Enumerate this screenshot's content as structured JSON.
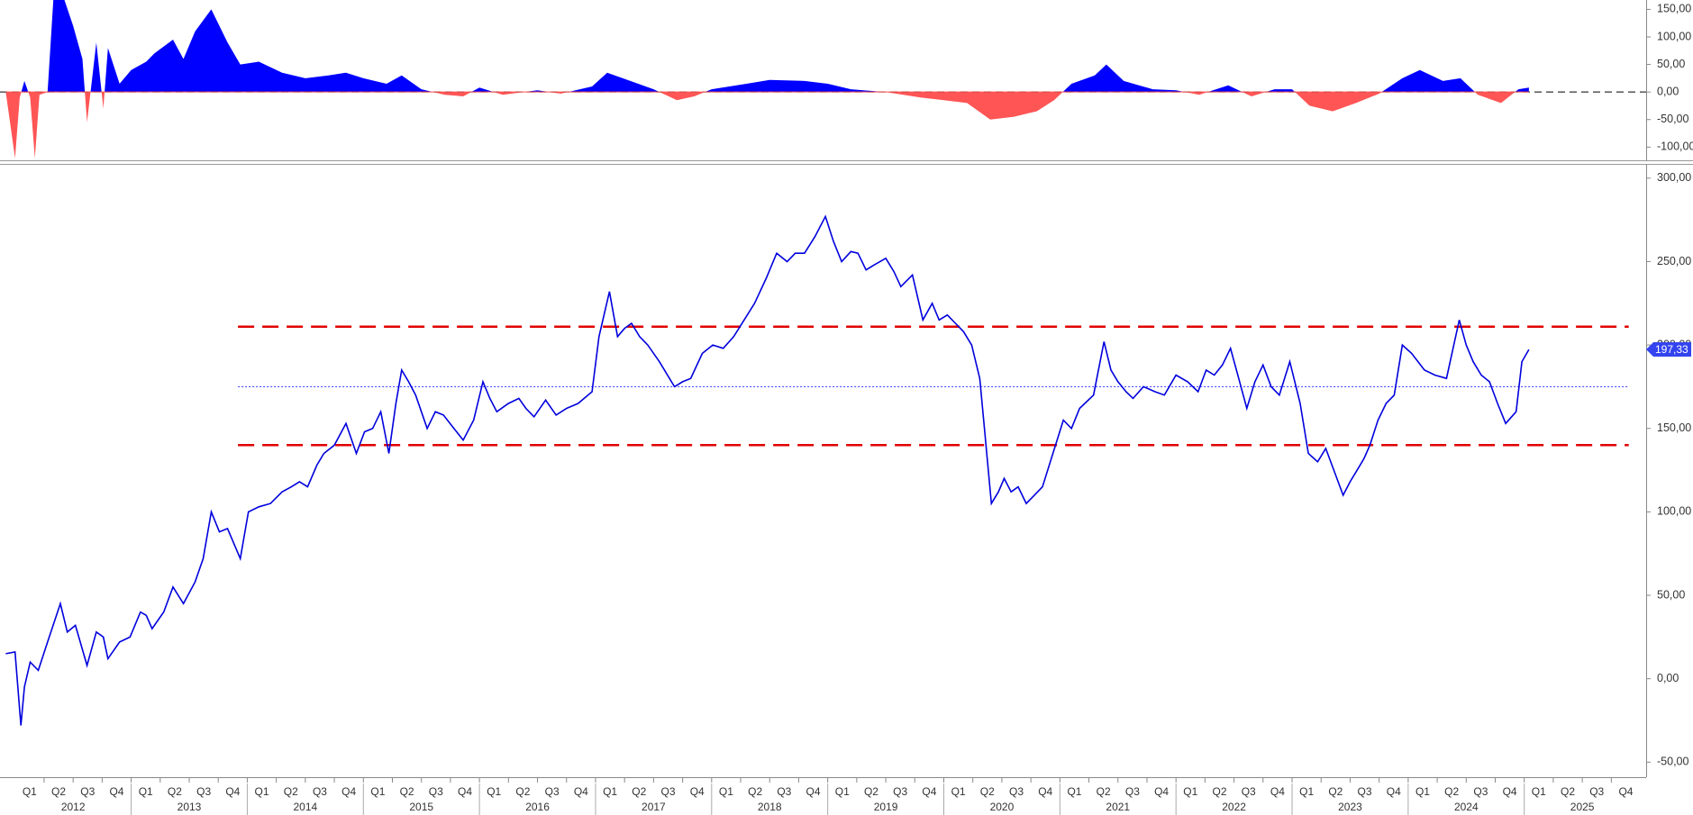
{
  "chart_data": [
    {
      "type": "area",
      "x": [
        2011.92,
        2012.0,
        2012.04,
        2012.08,
        2012.13,
        2012.17,
        2012.21,
        2012.28,
        2012.33,
        2012.42,
        2012.5,
        2012.58,
        2012.62,
        2012.7,
        2012.76,
        2012.8,
        2012.9,
        2013.0,
        2013.13,
        2013.2,
        2013.36,
        2013.45,
        2013.55,
        2013.69,
        2013.83,
        2013.94,
        2014.1,
        2014.3,
        2014.5,
        2014.7,
        2014.85,
        2015.0,
        2015.2,
        2015.33,
        2015.5,
        2015.7,
        2015.86,
        2016.0,
        2016.2,
        2016.5,
        2016.7,
        2016.97,
        2017.1,
        2017.3,
        2017.5,
        2017.7,
        2017.85,
        2018.0,
        2018.3,
        2018.5,
        2018.8,
        2019.0,
        2019.2,
        2019.5,
        2019.8,
        2020.0,
        2020.2,
        2020.4,
        2020.6,
        2020.8,
        2020.95,
        2021.1,
        2021.3,
        2021.4,
        2021.55,
        2021.8,
        2022.0,
        2022.2,
        2022.45,
        2022.65,
        2022.85,
        2023.0,
        2023.15,
        2023.35,
        2023.55,
        2023.75,
        2023.95,
        2024.1,
        2024.3,
        2024.45,
        2024.6,
        2024.8,
        2024.95,
        2025.04
      ],
      "values": [
        0,
        -120,
        -10,
        20,
        -10,
        -120,
        -5,
        0,
        170,
        170,
        120,
        60,
        -55,
        90,
        -30,
        80,
        15,
        40,
        55,
        70,
        95,
        60,
        110,
        150,
        90,
        50,
        55,
        35,
        25,
        30,
        35,
        25,
        15,
        30,
        5,
        -5,
        -8,
        8,
        -5,
        3,
        -3,
        10,
        35,
        20,
        5,
        -15,
        -8,
        5,
        15,
        22,
        20,
        15,
        5,
        0,
        -10,
        -15,
        -20,
        -50,
        -45,
        -35,
        -15,
        15,
        30,
        50,
        20,
        5,
        3,
        -5,
        12,
        -8,
        5,
        5,
        -25,
        -35,
        -20,
        -3,
        25,
        40,
        20,
        25,
        -5,
        -20,
        5,
        8
      ],
      "pos_color": "#0000ff",
      "neg_color": "#ff5555",
      "xlim": [
        2011.87,
        2026.05
      ],
      "ylim": [
        -124,
        167
      ],
      "yticks": [
        {
          "value": 150,
          "label": "150,00"
        },
        {
          "value": 100,
          "label": "100,00"
        },
        {
          "value": 50,
          "label": "50,00"
        },
        {
          "value": 0,
          "label": "0,00"
        },
        {
          "value": -50,
          "label": "-50,00"
        },
        {
          "value": -100,
          "label": "-100,00"
        }
      ]
    },
    {
      "type": "line",
      "x": [
        2011.92,
        2012.0,
        2012.05,
        2012.08,
        2012.13,
        2012.2,
        2012.28,
        2012.39,
        2012.45,
        2012.52,
        2012.62,
        2012.7,
        2012.76,
        2012.8,
        2012.9,
        2012.99,
        2013.08,
        2013.13,
        2013.18,
        2013.28,
        2013.36,
        2013.45,
        2013.55,
        2013.62,
        2013.69,
        2013.76,
        2013.83,
        2013.94,
        2014.01,
        2014.1,
        2014.2,
        2014.3,
        2014.38,
        2014.45,
        2014.52,
        2014.6,
        2014.66,
        2014.75,
        2014.85,
        2014.94,
        2015.01,
        2015.08,
        2015.15,
        2015.22,
        2015.28,
        2015.33,
        2015.39,
        2015.45,
        2015.55,
        2015.62,
        2015.69,
        2015.78,
        2015.86,
        2015.95,
        2016.03,
        2016.09,
        2016.15,
        2016.25,
        2016.34,
        2016.4,
        2016.47,
        2016.57,
        2016.66,
        2016.75,
        2016.85,
        2016.97,
        2017.03,
        2017.12,
        2017.19,
        2017.25,
        2017.31,
        2017.38,
        2017.45,
        2017.55,
        2017.68,
        2017.75,
        2017.82,
        2017.92,
        2018.01,
        2018.1,
        2018.19,
        2018.28,
        2018.37,
        2018.47,
        2018.56,
        2018.65,
        2018.72,
        2018.8,
        2018.89,
        2018.98,
        2019.05,
        2019.12,
        2019.2,
        2019.26,
        2019.33,
        2019.4,
        2019.5,
        2019.57,
        2019.63,
        2019.73,
        2019.82,
        2019.9,
        2019.96,
        2020.03,
        2020.1,
        2020.17,
        2020.24,
        2020.31,
        2020.35,
        2020.41,
        2020.47,
        2020.52,
        2020.58,
        2020.64,
        2020.71,
        2020.78,
        2020.85,
        2020.94,
        2021.03,
        2021.1,
        2021.17,
        2021.29,
        2021.38,
        2021.44,
        2021.5,
        2021.57,
        2021.63,
        2021.72,
        2021.82,
        2021.9,
        2022.0,
        2022.1,
        2022.19,
        2022.26,
        2022.33,
        2022.4,
        2022.47,
        2022.54,
        2022.61,
        2022.68,
        2022.75,
        2022.82,
        2022.89,
        2022.98,
        2023.07,
        2023.14,
        2023.22,
        2023.29,
        2023.36,
        2023.44,
        2023.5,
        2023.56,
        2023.62,
        2023.67,
        2023.74,
        2023.81,
        2023.88,
        2023.95,
        2024.03,
        2024.14,
        2024.23,
        2024.33,
        2024.44,
        2024.5,
        2024.56,
        2024.63,
        2024.7,
        2024.77,
        2024.84,
        2024.93,
        2024.98,
        2025.04
      ],
      "values": [
        15,
        16,
        -28,
        -5,
        10,
        5,
        22,
        45,
        28,
        32,
        8,
        28,
        25,
        12,
        22,
        25,
        40,
        38,
        30,
        40,
        55,
        45,
        58,
        72,
        100,
        88,
        90,
        72,
        100,
        103,
        105,
        112,
        115,
        118,
        115,
        128,
        135,
        140,
        153,
        135,
        148,
        150,
        160,
        135,
        165,
        185,
        178,
        170,
        150,
        160,
        158,
        150,
        143,
        155,
        178,
        168,
        160,
        165,
        168,
        162,
        157,
        167,
        158,
        162,
        165,
        172,
        205,
        232,
        205,
        210,
        213,
        205,
        200,
        190,
        175,
        178,
        180,
        195,
        200,
        198,
        205,
        215,
        225,
        240,
        255,
        250,
        255,
        255,
        265,
        277,
        262,
        250,
        256,
        255,
        245,
        248,
        252,
        244,
        235,
        242,
        215,
        225,
        215,
        218,
        213,
        208,
        200,
        180,
        150,
        105,
        112,
        120,
        112,
        115,
        105,
        110,
        115,
        135,
        155,
        150,
        162,
        170,
        202,
        185,
        178,
        172,
        168,
        175,
        172,
        170,
        182,
        178,
        172,
        185,
        182,
        188,
        198,
        180,
        162,
        178,
        188,
        175,
        170,
        190,
        165,
        135,
        130,
        138,
        125,
        110,
        118,
        125,
        132,
        140,
        155,
        165,
        170,
        200,
        195,
        185,
        182,
        180,
        215,
        200,
        190,
        182,
        178,
        165,
        153,
        160,
        190,
        197.33
      ],
      "color": "#0000dd",
      "xlim": [
        2011.87,
        2026.05
      ],
      "ylim": [
        -59,
        308
      ],
      "yticks": [
        {
          "value": 300,
          "label": "300,00"
        },
        {
          "value": 250,
          "label": "250,00"
        },
        {
          "value": 200,
          "label": "200,00"
        },
        {
          "value": 150,
          "label": "150,00"
        },
        {
          "value": 100,
          "label": "100,00"
        },
        {
          "value": 50,
          "label": "50,00"
        },
        {
          "value": 0,
          "label": "0,00"
        },
        {
          "value": -50,
          "label": "-50,00"
        }
      ],
      "xticks": [
        {
          "value": 2012.125,
          "label": "Q1"
        },
        {
          "value": 2012.375,
          "label": "Q2"
        },
        {
          "value": 2012.625,
          "label": "Q3"
        },
        {
          "value": 2012.875,
          "label": "Q4"
        },
        {
          "value": 2013.125,
          "label": "Q1"
        },
        {
          "value": 2013.375,
          "label": "Q2"
        },
        {
          "value": 2013.625,
          "label": "Q3"
        },
        {
          "value": 2013.875,
          "label": "Q4"
        },
        {
          "value": 2014.125,
          "label": "Q1"
        },
        {
          "value": 2014.375,
          "label": "Q2"
        },
        {
          "value": 2014.625,
          "label": "Q3"
        },
        {
          "value": 2014.875,
          "label": "Q4"
        },
        {
          "value": 2015.125,
          "label": "Q1"
        },
        {
          "value": 2015.375,
          "label": "Q2"
        },
        {
          "value": 2015.625,
          "label": "Q3"
        },
        {
          "value": 2015.875,
          "label": "Q4"
        },
        {
          "value": 2016.125,
          "label": "Q1"
        },
        {
          "value": 2016.375,
          "label": "Q2"
        },
        {
          "value": 2016.625,
          "label": "Q3"
        },
        {
          "value": 2016.875,
          "label": "Q4"
        },
        {
          "value": 2017.125,
          "label": "Q1"
        },
        {
          "value": 2017.375,
          "label": "Q2"
        },
        {
          "value": 2017.625,
          "label": "Q3"
        },
        {
          "value": 2017.875,
          "label": "Q4"
        },
        {
          "value": 2018.125,
          "label": "Q1"
        },
        {
          "value": 2018.375,
          "label": "Q2"
        },
        {
          "value": 2018.625,
          "label": "Q3"
        },
        {
          "value": 2018.875,
          "label": "Q4"
        },
        {
          "value": 2019.125,
          "label": "Q1"
        },
        {
          "value": 2019.375,
          "label": "Q2"
        },
        {
          "value": 2019.625,
          "label": "Q3"
        },
        {
          "value": 2019.875,
          "label": "Q4"
        },
        {
          "value": 2020.125,
          "label": "Q1"
        },
        {
          "value": 2020.375,
          "label": "Q2"
        },
        {
          "value": 2020.625,
          "label": "Q3"
        },
        {
          "value": 2020.875,
          "label": "Q4"
        },
        {
          "value": 2021.125,
          "label": "Q1"
        },
        {
          "value": 2021.375,
          "label": "Q2"
        },
        {
          "value": 2021.625,
          "label": "Q3"
        },
        {
          "value": 2021.875,
          "label": "Q4"
        },
        {
          "value": 2022.125,
          "label": "Q1"
        },
        {
          "value": 2022.375,
          "label": "Q2"
        },
        {
          "value": 2022.625,
          "label": "Q3"
        },
        {
          "value": 2022.875,
          "label": "Q4"
        },
        {
          "value": 2023.125,
          "label": "Q1"
        },
        {
          "value": 2023.375,
          "label": "Q2"
        },
        {
          "value": 2023.625,
          "label": "Q3"
        },
        {
          "value": 2023.875,
          "label": "Q4"
        },
        {
          "value": 2024.125,
          "label": "Q1"
        },
        {
          "value": 2024.375,
          "label": "Q2"
        },
        {
          "value": 2024.625,
          "label": "Q3"
        },
        {
          "value": 2024.875,
          "label": "Q4"
        },
        {
          "value": 2025.125,
          "label": "Q1"
        },
        {
          "value": 2025.375,
          "label": "Q2"
        },
        {
          "value": 2025.625,
          "label": "Q3"
        },
        {
          "value": 2025.875,
          "label": "Q4"
        }
      ],
      "year_ticks": [
        {
          "value": 2012.5,
          "label": "2012"
        },
        {
          "value": 2013.5,
          "label": "2013"
        },
        {
          "value": 2014.5,
          "label": "2014"
        },
        {
          "value": 2015.5,
          "label": "2015"
        },
        {
          "value": 2016.5,
          "label": "2016"
        },
        {
          "value": 2017.5,
          "label": "2017"
        },
        {
          "value": 2018.5,
          "label": "2018"
        },
        {
          "value": 2019.5,
          "label": "2019"
        },
        {
          "value": 2020.5,
          "label": "2020"
        },
        {
          "value": 2021.5,
          "label": "2021"
        },
        {
          "value": 2022.5,
          "label": "2022"
        },
        {
          "value": 2023.5,
          "label": "2023"
        },
        {
          "value": 2024.5,
          "label": "2024"
        },
        {
          "value": 2025.5,
          "label": "2025"
        }
      ],
      "reference_lines": [
        {
          "value": 211,
          "color": "#e00000",
          "style": "dashed",
          "xrange": [
            2013.92,
            2025.9
          ]
        },
        {
          "value": 175,
          "color": "#3333ff",
          "style": "dotted",
          "xrange": [
            2013.92,
            2025.9
          ]
        },
        {
          "value": 140,
          "color": "#e00000",
          "style": "dashed",
          "xrange": [
            2013.92,
            2025.9
          ]
        }
      ],
      "last_value": {
        "value": 197.33,
        "label": "197,33"
      }
    }
  ]
}
